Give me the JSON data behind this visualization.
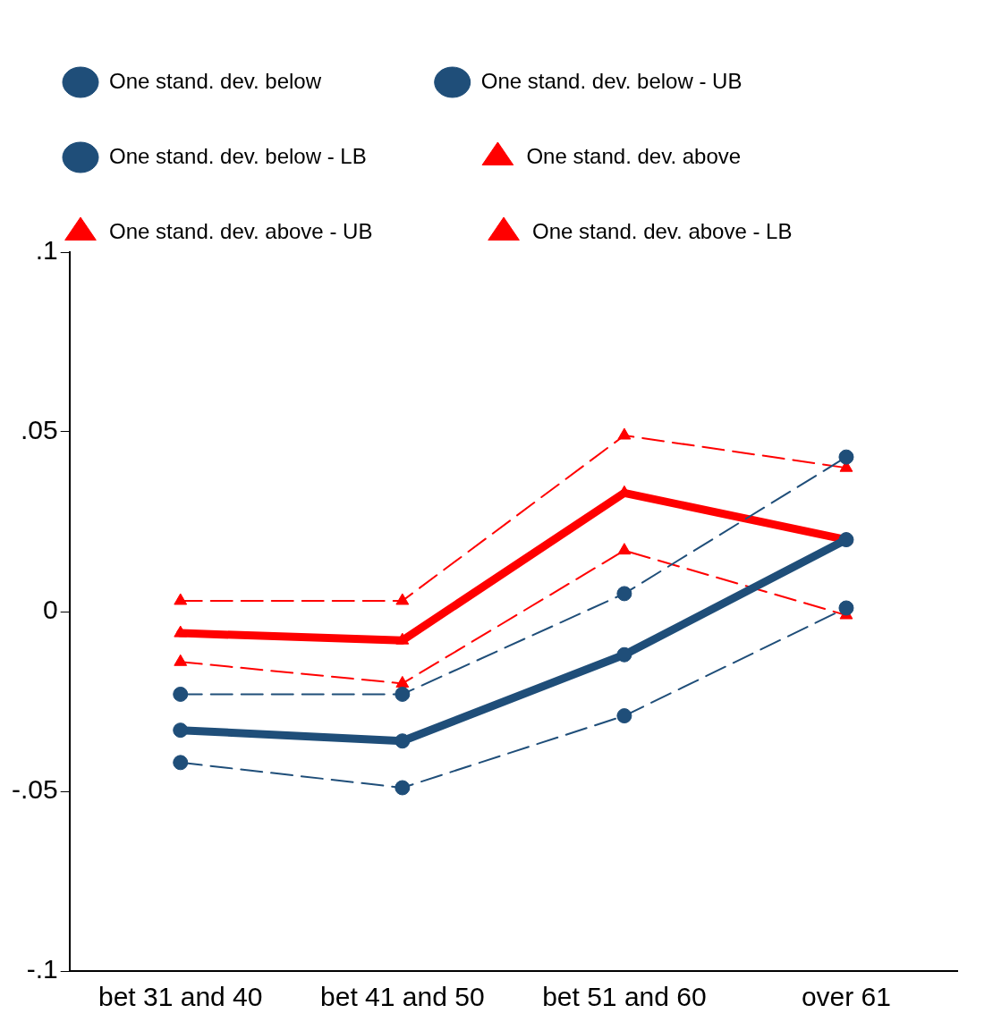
{
  "chart_data": {
    "type": "line",
    "categories": [
      "bet 31 and 40",
      "bet 41 and 50",
      "bet 51 and 60",
      "over 61"
    ],
    "series": [
      {
        "name": "One stand. dev. below",
        "color": "#1f4e79",
        "line_style": "solid",
        "marker": "circle",
        "values": [
          -0.033,
          -0.036,
          -0.012,
          0.02
        ]
      },
      {
        "name": "One stand. dev. below - UB",
        "color": "#1f4e79",
        "line_style": "dashed",
        "marker": "circle",
        "values": [
          -0.023,
          -0.023,
          0.005,
          0.043
        ]
      },
      {
        "name": "One stand. dev. below - LB",
        "color": "#1f4e79",
        "line_style": "dashed",
        "marker": "circle",
        "values": [
          -0.042,
          -0.049,
          -0.029,
          0.001
        ]
      },
      {
        "name": "One stand. dev. above",
        "color": "#ff0000",
        "line_style": "solid",
        "marker": "triangle",
        "values": [
          -0.006,
          -0.008,
          0.033,
          0.02
        ]
      },
      {
        "name": "One stand. dev. above - UB",
        "color": "#ff0000",
        "line_style": "dashed",
        "marker": "triangle",
        "values": [
          0.003,
          0.003,
          0.049,
          0.04
        ]
      },
      {
        "name": "One stand. dev. above - LB",
        "color": "#ff0000",
        "line_style": "dashed",
        "marker": "triangle",
        "values": [
          -0.014,
          -0.02,
          0.017,
          -0.001
        ]
      }
    ],
    "ylim": [
      -0.1,
      0.1
    ],
    "yticks": [
      {
        "value": -0.1,
        "label": "-.1"
      },
      {
        "value": -0.05,
        "label": "-.05"
      },
      {
        "value": 0,
        "label": "0"
      },
      {
        "value": 0.05,
        "label": ".05"
      },
      {
        "value": 0.1,
        "label": ".1"
      }
    ],
    "grid": false,
    "legend": "top"
  }
}
